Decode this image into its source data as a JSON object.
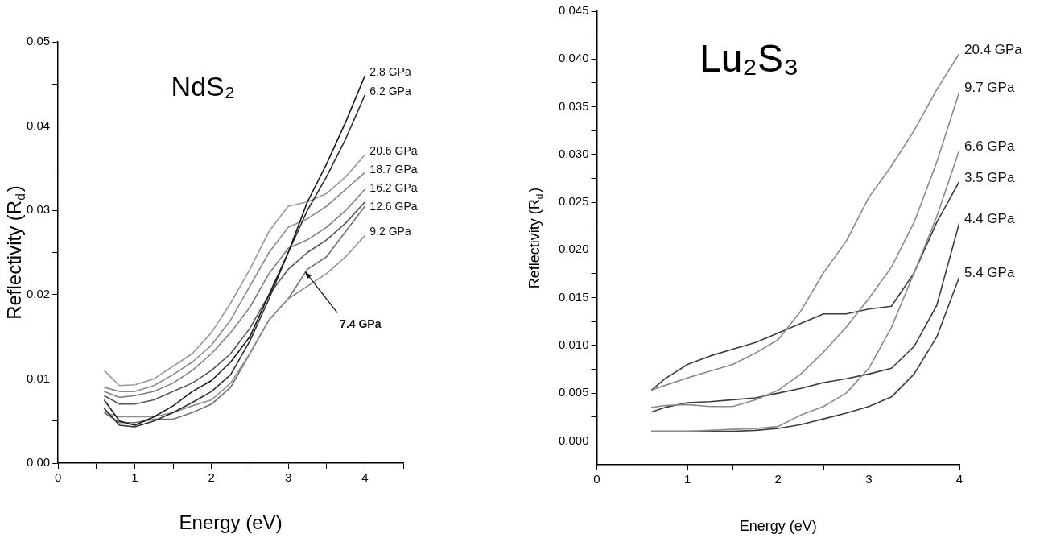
{
  "chart_data": [
    {
      "type": "line",
      "title": "NdS₂",
      "xlabel": "Energy (eV)",
      "ylabel": "Reflectivity (R$_{d}$)",
      "x": [
        0.6,
        0.8,
        1.0,
        1.25,
        1.5,
        1.75,
        2.0,
        2.25,
        2.5,
        2.75,
        3.0,
        3.25,
        3.5,
        3.75,
        4.0
      ],
      "series": [
        {
          "name": "2.8 GPa",
          "color": "#1a1a1a",
          "values": [
            0.0075,
            0.005,
            0.0045,
            0.0055,
            0.0068,
            0.0085,
            0.0098,
            0.012,
            0.015,
            0.02,
            0.025,
            0.031,
            0.0355,
            0.0405,
            0.046
          ]
        },
        {
          "name": "6.2 GPa",
          "color": "#2e2e2e",
          "values": [
            0.0065,
            0.0045,
            0.0043,
            0.005,
            0.006,
            0.0072,
            0.0085,
            0.0105,
            0.0145,
            0.0195,
            0.025,
            0.03,
            0.034,
            0.0385,
            0.0437
          ]
        },
        {
          "name": "20.6 GPa",
          "color": "#9a9a9a",
          "values": [
            0.011,
            0.0092,
            0.0093,
            0.01,
            0.0115,
            0.013,
            0.0155,
            0.019,
            0.023,
            0.0275,
            0.0305,
            0.031,
            0.032,
            0.034,
            0.0366
          ]
        },
        {
          "name": "18.7 GPa",
          "color": "#8a8a8a",
          "values": [
            0.009,
            0.0085,
            0.0085,
            0.0092,
            0.0105,
            0.012,
            0.014,
            0.017,
            0.021,
            0.025,
            0.028,
            0.029,
            0.0305,
            0.0325,
            0.0345
          ]
        },
        {
          "name": "16.2 GPa",
          "color": "#808080",
          "values": [
            0.0085,
            0.0078,
            0.008,
            0.0085,
            0.0095,
            0.011,
            0.013,
            0.0155,
            0.0185,
            0.0225,
            0.0255,
            0.0265,
            0.028,
            0.03,
            0.0325
          ]
        },
        {
          "name": "12.6 GPa",
          "color": "#555555",
          "values": [
            0.008,
            0.007,
            0.007,
            0.0075,
            0.0085,
            0.0095,
            0.011,
            0.013,
            0.016,
            0.02,
            0.023,
            0.025,
            0.0265,
            0.0285,
            0.031
          ]
        },
        {
          "name": "9.2 GPa",
          "color": "#8f8f8f",
          "values": [
            0.006,
            0.0055,
            0.0055,
            0.0055,
            0.006,
            0.0068,
            0.0075,
            0.0095,
            0.013,
            0.017,
            0.0195,
            0.021,
            0.0225,
            0.0245,
            0.027
          ]
        },
        {
          "color": "#707070",
          "values": [
            0.006,
            0.0048,
            0.0048,
            0.0052,
            0.0052,
            0.006,
            0.007,
            0.009,
            0.013,
            0.017,
            0.0195,
            0.023,
            0.0245,
            0.0275,
            0.0305
          ]
        }
      ],
      "annotations": [
        {
          "text": "7.4 GPa",
          "x": 3.2,
          "y": 0.023
        }
      ],
      "xlim": [
        0,
        4.5
      ],
      "xticks": [
        0,
        {
          "value": 0.5,
          "label": null
        },
        1,
        {
          "value": 1.5,
          "label": null
        },
        2,
        {
          "value": 2.5,
          "label": null
        },
        3,
        {
          "value": 3.5,
          "label": null
        },
        4,
        {
          "value": 4.5,
          "label": null
        }
      ],
      "ylim": [
        0,
        0.05
      ],
      "yticks": [
        {
          "value": 0,
          "label": "0.00"
        },
        {
          "value": 0.005,
          "label": null
        },
        {
          "value": 0.01,
          "label": "0.01"
        },
        {
          "value": 0.015,
          "label": null
        },
        {
          "value": 0.02,
          "label": "0.02"
        },
        {
          "value": 0.025,
          "label": null
        },
        {
          "value": 0.03,
          "label": "0.03"
        },
        {
          "value": 0.035,
          "label": null
        },
        {
          "value": 0.04,
          "label": "0.04"
        },
        {
          "value": 0.045,
          "label": null
        },
        {
          "value": 0.05,
          "label": "0.05"
        }
      ],
      "marker": "none",
      "line_style": "solid"
    },
    {
      "type": "line",
      "title": "Lu₂S₃",
      "xlabel": "Energy (eV)",
      "ylabel": "Reflectivity (R$_{d}$)",
      "x": [
        0.6,
        0.75,
        1.0,
        1.25,
        1.5,
        1.75,
        2.0,
        2.25,
        2.5,
        2.75,
        3.0,
        3.25,
        3.5,
        3.75,
        4.0
      ],
      "series": [
        {
          "name": "20.4 GPa",
          "color": "#8a8a8a",
          "values": [
            0.0053,
            0.0058,
            0.0066,
            0.0073,
            0.008,
            0.0092,
            0.0106,
            0.0136,
            0.0176,
            0.0209,
            0.0255,
            0.0288,
            0.0325,
            0.0368,
            0.0406
          ]
        },
        {
          "name": "9.7 GPa",
          "color": "#8a8a8a",
          "values": [
            0.0035,
            0.0037,
            0.0038,
            0.0036,
            0.0036,
            0.0043,
            0.0053,
            0.007,
            0.0093,
            0.0119,
            0.0149,
            0.0182,
            0.0229,
            0.0292,
            0.0366
          ]
        },
        {
          "name": "6.6 GPa",
          "color": "#8a8a8a",
          "values": [
            0.001,
            0.001,
            0.001,
            0.0011,
            0.0012,
            0.0013,
            0.0015,
            0.0027,
            0.0036,
            0.005,
            0.0076,
            0.0119,
            0.0176,
            0.0235,
            0.0305
          ]
        },
        {
          "name": "3.5 GPa",
          "color": "#3c3c3c",
          "values": [
            0.0053,
            0.0065,
            0.008,
            0.0089,
            0.0096,
            0.0103,
            0.0113,
            0.0123,
            0.0133,
            0.0133,
            0.0138,
            0.0141,
            0.0176,
            0.0229,
            0.0272
          ]
        },
        {
          "name": "4.4 GPa",
          "color": "#3c3c3c",
          "values": [
            0.003,
            0.0035,
            0.004,
            0.0041,
            0.0043,
            0.0045,
            0.005,
            0.0055,
            0.0061,
            0.0065,
            0.007,
            0.0076,
            0.0099,
            0.0142,
            0.0229
          ]
        },
        {
          "name": "5.4 GPa",
          "color": "#3c3c3c",
          "values": [
            0.001,
            0.001,
            0.001,
            0.001,
            0.001,
            0.0011,
            0.0013,
            0.0017,
            0.0023,
            0.0029,
            0.0036,
            0.0046,
            0.007,
            0.0109,
            0.0172
          ]
        }
      ],
      "xlim": [
        0,
        4
      ],
      "xticks": [
        0,
        {
          "value": 0.5,
          "label": null
        },
        1,
        {
          "value": 1.5,
          "label": null
        },
        2,
        {
          "value": 2.5,
          "label": null
        },
        3,
        {
          "value": 3.5,
          "label": null
        },
        4
      ],
      "ylim": [
        -0.0025,
        0.045
      ],
      "yticks": [
        {
          "value": 0,
          "label": "0.000"
        },
        {
          "value": 0.0025,
          "label": null
        },
        {
          "value": 0.005,
          "label": "0.005"
        },
        {
          "value": 0.0075,
          "label": null
        },
        {
          "value": 0.01,
          "label": "0.010"
        },
        {
          "value": 0.0125,
          "label": null
        },
        {
          "value": 0.015,
          "label": "0.015"
        },
        {
          "value": 0.0175,
          "label": null
        },
        {
          "value": 0.02,
          "label": "0.020"
        },
        {
          "value": 0.0225,
          "label": null
        },
        {
          "value": 0.025,
          "label": "0.025"
        },
        {
          "value": 0.0275,
          "label": null
        },
        {
          "value": 0.03,
          "label": "0.030"
        },
        {
          "value": 0.0325,
          "label": null
        },
        {
          "value": 0.035,
          "label": "0.035"
        },
        {
          "value": 0.0375,
          "label": null
        },
        {
          "value": 0.04,
          "label": "0.040"
        },
        {
          "value": 0.0425,
          "label": null
        },
        {
          "value": 0.045,
          "label": "0.045"
        }
      ],
      "marker": "none",
      "line_style": "solid"
    }
  ]
}
